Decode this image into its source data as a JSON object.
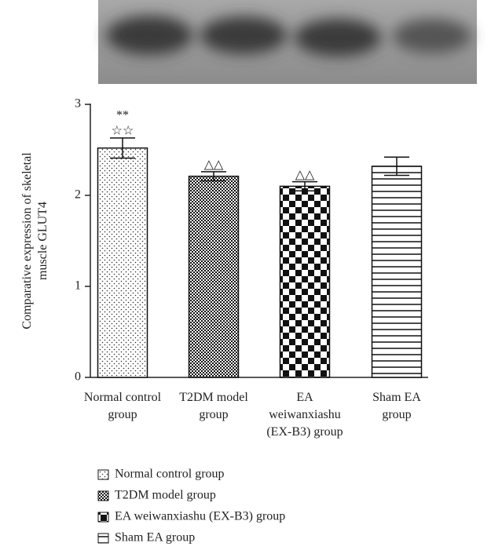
{
  "chart_data": {
    "type": "bar",
    "ylabel": "Comparative expression of skeletal muscle GLUT4",
    "categories": [
      "Normal control group",
      "T2DM model group",
      "EA weiwanxiashu (EX-B3) group",
      "Sham EA group"
    ],
    "values": [
      2.52,
      2.21,
      2.1,
      2.32
    ],
    "errors": [
      0.11,
      0.05,
      0.05,
      0.1
    ],
    "markers": [
      [
        "**",
        "☆☆"
      ],
      [
        "△△"
      ],
      [
        "△△"
      ],
      []
    ],
    "ylim": [
      0,
      3
    ],
    "yticks": [
      0,
      1,
      2,
      3
    ],
    "legend": [
      "Normal control group",
      "T2DM model group",
      "EA weiwanxiashu (EX-B3) group",
      "Sham EA group"
    ]
  }
}
